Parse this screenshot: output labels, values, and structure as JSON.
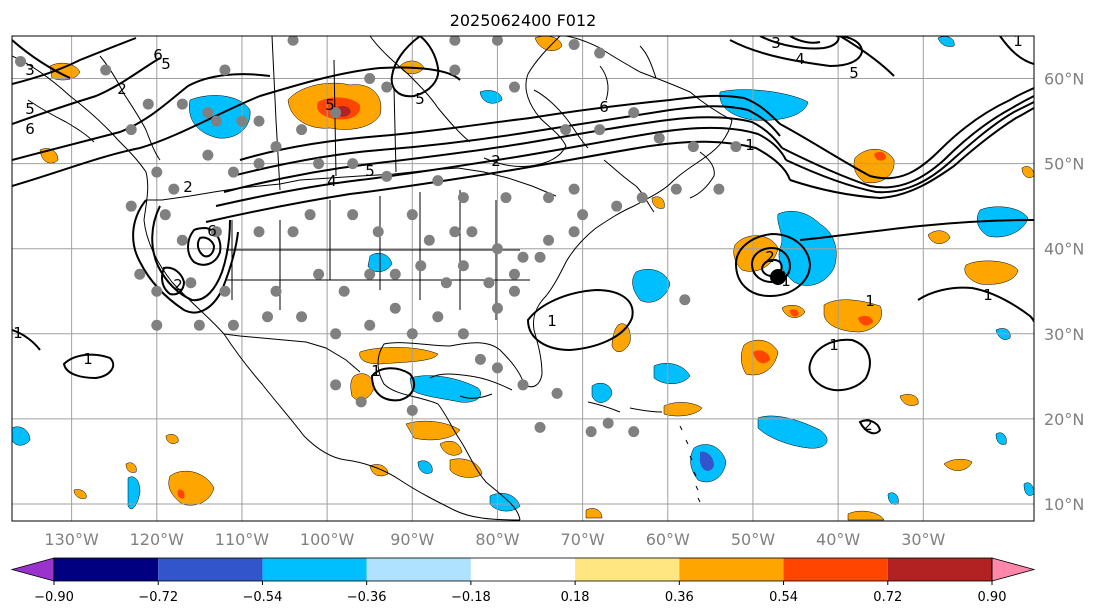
{
  "title": "2025062400 F012",
  "map": {
    "projection": "equirectangular",
    "lon_range": [
      -137,
      -17
    ],
    "lat_range": [
      8,
      65
    ],
    "lon_ticks": [
      {
        "value": -130,
        "label": "130°W"
      },
      {
        "value": -120,
        "label": "120°W"
      },
      {
        "value": -110,
        "label": "110°W"
      },
      {
        "value": -100,
        "label": "100°W"
      },
      {
        "value": -90,
        "label": "90°W"
      },
      {
        "value": -80,
        "label": "80°W"
      },
      {
        "value": -70,
        "label": "70°W"
      },
      {
        "value": -60,
        "label": "60°W"
      },
      {
        "value": -50,
        "label": "50°W"
      },
      {
        "value": -40,
        "label": "40°W"
      },
      {
        "value": -30,
        "label": "30°W"
      }
    ],
    "lat_ticks": [
      {
        "value": 60,
        "label": "60°N"
      },
      {
        "value": 50,
        "label": "50°N"
      },
      {
        "value": 40,
        "label": "40°N"
      },
      {
        "value": 30,
        "label": "30°N"
      },
      {
        "value": 20,
        "label": "20°N"
      },
      {
        "value": 10,
        "label": "10°N"
      }
    ],
    "gridlines": true,
    "colors": {
      "grid": "#a0a0a0",
      "coast": "#000000",
      "station": "#808080",
      "contour": "#000000",
      "axis_label": "#808080"
    }
  },
  "colorbar": {
    "orientation": "horizontal",
    "extend": "both",
    "bounds": [
      -0.9,
      -0.72,
      -0.54,
      -0.36,
      -0.18,
      0.18,
      0.36,
      0.54,
      0.72,
      0.9
    ],
    "tick_labels": [
      "−0.90",
      "−0.72",
      "−0.54",
      "−0.36",
      "−0.18",
      "0.18",
      "0.36",
      "0.54",
      "0.72",
      "0.90"
    ],
    "colors": [
      "#9933cc",
      "#000080",
      "#3355cc",
      "#00bfff",
      "#aee2ff",
      "#ffffff",
      "#ffe680",
      "#ffa500",
      "#ff4500",
      "#b22222",
      "#ff88aa"
    ]
  },
  "contour_labels": [
    "6",
    "5",
    "3",
    "2",
    "5",
    "6",
    "2",
    "6",
    "5",
    "5",
    "1",
    "2",
    "5",
    "4",
    "6",
    "2",
    "3",
    "4",
    "5",
    "1",
    "2",
    "1",
    "1",
    "1",
    "1",
    "1",
    "1",
    "2",
    "1",
    "1"
  ],
  "station_points": [
    [
      -136,
      62
    ],
    [
      -126,
      61
    ],
    [
      -121,
      57
    ],
    [
      -112,
      61
    ],
    [
      -104,
      64.5
    ],
    [
      -85,
      64.5
    ],
    [
      -80,
      64.5
    ],
    [
      -71,
      64
    ],
    [
      -117,
      57
    ],
    [
      -114,
      56
    ],
    [
      -113,
      55
    ],
    [
      -110,
      55
    ],
    [
      -108,
      55
    ],
    [
      -103,
      54
    ],
    [
      -99,
      56
    ],
    [
      -95,
      60
    ],
    [
      -93,
      59
    ],
    [
      -85,
      61
    ],
    [
      -78,
      59
    ],
    [
      -68,
      63
    ],
    [
      -64,
      56
    ],
    [
      -72,
      54
    ],
    [
      -68,
      54
    ],
    [
      -61,
      53
    ],
    [
      -57,
      52
    ],
    [
      -52,
      52
    ],
    [
      -54,
      47
    ],
    [
      -123,
      54
    ],
    [
      -120,
      49
    ],
    [
      -118,
      47
    ],
    [
      -114,
      51
    ],
    [
      -111,
      49
    ],
    [
      -108,
      50
    ],
    [
      -106,
      52
    ],
    [
      -101,
      50
    ],
    [
      -97,
      50
    ],
    [
      -93,
      48.5
    ],
    [
      -87,
      48
    ],
    [
      -84,
      46
    ],
    [
      -79,
      46
    ],
    [
      -74,
      46
    ],
    [
      -71,
      47
    ],
    [
      -70,
      44
    ],
    [
      -66,
      45
    ],
    [
      -63,
      46
    ],
    [
      -59,
      47
    ],
    [
      -123,
      45
    ],
    [
      -119,
      44
    ],
    [
      -117,
      41
    ],
    [
      -113,
      42
    ],
    [
      -108,
      42
    ],
    [
      -104,
      42
    ],
    [
      -102,
      44
    ],
    [
      -97,
      44
    ],
    [
      -94,
      42
    ],
    [
      -90,
      44
    ],
    [
      -88,
      41
    ],
    [
      -85,
      42
    ],
    [
      -83,
      42
    ],
    [
      -80,
      40
    ],
    [
      -77,
      39
    ],
    [
      -74,
      41
    ],
    [
      -71,
      42
    ],
    [
      -122,
      37
    ],
    [
      -120,
      35
    ],
    [
      -116,
      36
    ],
    [
      -112,
      35
    ],
    [
      -106,
      35
    ],
    [
      -101,
      37
    ],
    [
      -98,
      35
    ],
    [
      -95,
      37
    ],
    [
      -92,
      37
    ],
    [
      -89,
      38
    ],
    [
      -86,
      36
    ],
    [
      -84,
      38
    ],
    [
      -81,
      36
    ],
    [
      -78,
      37
    ],
    [
      -75,
      39
    ],
    [
      -120,
      31
    ],
    [
      -115,
      31
    ],
    [
      -111,
      31
    ],
    [
      -107,
      32
    ],
    [
      -103,
      32
    ],
    [
      -99,
      30
    ],
    [
      -95,
      31
    ],
    [
      -92,
      33
    ],
    [
      -90,
      30
    ],
    [
      -87,
      32
    ],
    [
      -84,
      30
    ],
    [
      -80,
      33
    ],
    [
      -78,
      35
    ],
    [
      -82,
      27
    ],
    [
      -80,
      26
    ],
    [
      -77,
      24
    ],
    [
      -73,
      23
    ],
    [
      -75,
      19
    ],
    [
      -69,
      18.5
    ],
    [
      -64,
      18.5
    ],
    [
      -67,
      19.5
    ],
    [
      -58,
      34
    ],
    [
      -99,
      24
    ],
    [
      -96,
      22
    ],
    [
      -90,
      21
    ]
  ]
}
